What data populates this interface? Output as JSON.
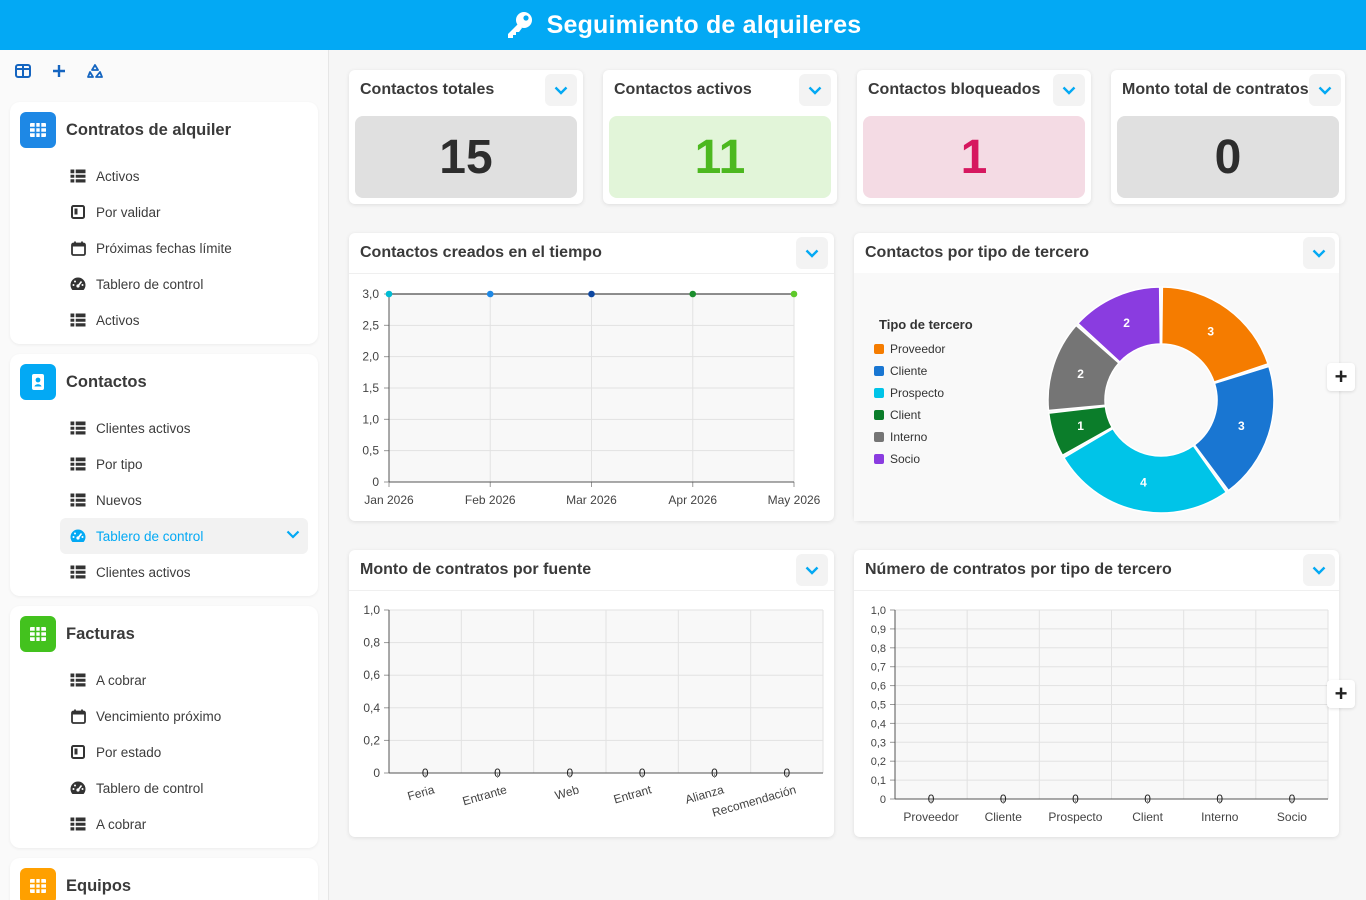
{
  "app": {
    "title": "Seguimiento de alquileres",
    "accent": "#03a9f4"
  },
  "sidebar": {
    "tools": [
      "layout-icon",
      "plus-icon",
      "recycle-icon"
    ],
    "groups": [
      {
        "label": "Contratos de alquiler",
        "color": "#1e88e5",
        "icon": "grid-icon",
        "items": [
          {
            "label": "Activos",
            "icon": "table-icon"
          },
          {
            "label": "Por validar",
            "icon": "kanban-icon"
          },
          {
            "label": "Próximas fechas límite",
            "icon": "calendar-icon"
          },
          {
            "label": "Tablero de control",
            "icon": "gauge-icon"
          },
          {
            "label": "Activos",
            "icon": "table-icon"
          }
        ]
      },
      {
        "label": "Contactos",
        "color": "#03a9f4",
        "icon": "contact-icon",
        "items": [
          {
            "label": "Clientes activos",
            "icon": "table-icon"
          },
          {
            "label": "Por tipo",
            "icon": "table-icon"
          },
          {
            "label": "Nuevos",
            "icon": "table-icon"
          },
          {
            "label": "Tablero de control",
            "icon": "gauge-icon",
            "active": true
          },
          {
            "label": "Clientes activos",
            "icon": "table-icon"
          }
        ]
      },
      {
        "label": "Facturas",
        "color": "#43c21e",
        "icon": "grid-icon",
        "items": [
          {
            "label": "A cobrar",
            "icon": "table-icon"
          },
          {
            "label": "Vencimiento próximo",
            "icon": "calendar-icon"
          },
          {
            "label": "Por estado",
            "icon": "kanban-icon"
          },
          {
            "label": "Tablero de control",
            "icon": "gauge-icon"
          },
          {
            "label": "A cobrar",
            "icon": "table-icon"
          }
        ]
      },
      {
        "label": "Equipos",
        "color": "#ffa000",
        "icon": "grid-icon",
        "items": []
      }
    ]
  },
  "kpis": [
    {
      "title": "Contactos totales",
      "value": "15",
      "bg": "#e0e0e0",
      "color": "#2d2d2d"
    },
    {
      "title": "Contactos activos",
      "value": "11",
      "bg": "#e2f5d9",
      "color": "#4cb81f"
    },
    {
      "title": "Contactos bloqueados",
      "value": "1",
      "bg": "#f4dbe4",
      "color": "#d6175f"
    },
    {
      "title": "Monto total de contratos",
      "value": "0",
      "bg": "#e0e0e0",
      "color": "#2d2d2d"
    }
  ],
  "charts": {
    "line_title": "Contactos creados en el tiempo",
    "donut_title": "Contactos por tipo de tercero",
    "bar1_title": "Monto de contratos por fuente",
    "bar2_title": "Número de contratos por tipo de tercero"
  },
  "chart_data": [
    {
      "type": "line",
      "title": "Contactos creados en el tiempo",
      "x": [
        "Jan 2026",
        "Feb 2026",
        "Mar 2026",
        "Apr 2026",
        "May 2026"
      ],
      "values": [
        3,
        3,
        3,
        3,
        3
      ],
      "point_colors": [
        "#00bcd4",
        "#1e88e5",
        "#0d47a1",
        "#1b8e2d",
        "#5ec92a"
      ],
      "yticks": [
        "0",
        "0,5",
        "1,0",
        "1,5",
        "2,0",
        "2,5",
        "3,0"
      ],
      "ylim": [
        0,
        3
      ],
      "grid": true
    },
    {
      "type": "pie",
      "title": "Contactos por tipo de tercero",
      "legend_title": "Tipo de tercero",
      "legend_position": "left",
      "categories": [
        "Proveedor",
        "Cliente",
        "Prospecto",
        "Client",
        "Interno",
        "Socio"
      ],
      "values": [
        3,
        3,
        4,
        1,
        2,
        2
      ],
      "colors": [
        "#f57c00",
        "#1976d2",
        "#00c4e8",
        "#0b7d2a",
        "#757575",
        "#8a3ce0"
      ]
    },
    {
      "type": "bar",
      "title": "Monto de contratos por fuente",
      "categories": [
        "Feria",
        "Entrante",
        "Web",
        "Entrant",
        "Alianza",
        "Recomendación"
      ],
      "values": [
        0,
        0,
        0,
        0,
        0,
        0
      ],
      "yticks": [
        "0",
        "0,2",
        "0,4",
        "0,6",
        "0,8",
        "1,0"
      ],
      "ylim": [
        0,
        1
      ],
      "grid": true
    },
    {
      "type": "bar",
      "title": "Número de contratos por tipo de tercero",
      "categories": [
        "Proveedor",
        "Cliente",
        "Prospecto",
        "Client",
        "Interno",
        "Socio"
      ],
      "values": [
        0,
        0,
        0,
        0,
        0,
        0
      ],
      "yticks": [
        "0",
        "0,1",
        "0,2",
        "0,3",
        "0,4",
        "0,5",
        "0,6",
        "0,7",
        "0,8",
        "0,9",
        "1,0"
      ],
      "ylim": [
        0,
        1
      ],
      "grid": true
    }
  ]
}
